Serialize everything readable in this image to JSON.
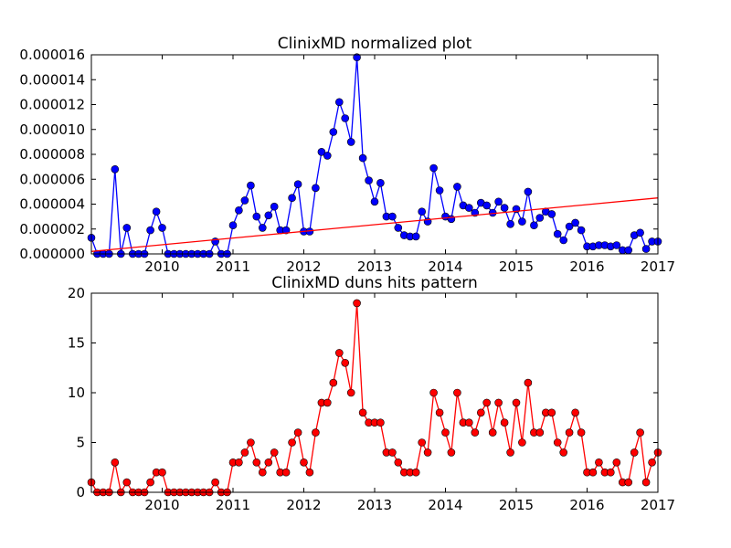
{
  "chart_data": [
    {
      "type": "line",
      "title": "ClinixMD normalized plot",
      "xlabel": "",
      "ylabel": "",
      "xlim": [
        2009.0,
        2017.0
      ],
      "ylim": [
        0.0,
        1.6e-05
      ],
      "x_ticks": [
        "2010",
        "2011",
        "2012",
        "2013",
        "2014",
        "2015",
        "2016",
        "2017"
      ],
      "y_ticks": [
        "0.000000",
        "0.000002",
        "0.000004",
        "0.000006",
        "0.000008",
        "0.000010",
        "0.000012",
        "0.000014",
        "0.000016"
      ],
      "grid": false,
      "series": [
        {
          "style": "line-with-circle-markers",
          "color": "#0000ff",
          "x": [
            2009.0,
            2009.083,
            2009.167,
            2009.25,
            2009.333,
            2009.417,
            2009.5,
            2009.583,
            2009.667,
            2009.75,
            2009.833,
            2009.917,
            2010.0,
            2010.083,
            2010.167,
            2010.25,
            2010.333,
            2010.417,
            2010.5,
            2010.583,
            2010.667,
            2010.75,
            2010.833,
            2010.917,
            2011.0,
            2011.083,
            2011.167,
            2011.25,
            2011.333,
            2011.417,
            2011.5,
            2011.583,
            2011.667,
            2011.75,
            2011.833,
            2011.917,
            2012.0,
            2012.083,
            2012.167,
            2012.25,
            2012.333,
            2012.417,
            2012.5,
            2012.583,
            2012.667,
            2012.75,
            2012.833,
            2012.917,
            2013.0,
            2013.083,
            2013.167,
            2013.25,
            2013.333,
            2013.417,
            2013.5,
            2013.583,
            2013.667,
            2013.75,
            2013.833,
            2013.917,
            2014.0,
            2014.083,
            2014.167,
            2014.25,
            2014.333,
            2014.417,
            2014.5,
            2014.583,
            2014.667,
            2014.75,
            2014.833,
            2014.917,
            2015.0,
            2015.083,
            2015.167,
            2015.25,
            2015.333,
            2015.417,
            2015.5,
            2015.583,
            2015.667,
            2015.75,
            2015.833,
            2015.917,
            2016.0,
            2016.083,
            2016.167,
            2016.25,
            2016.333,
            2016.417,
            2016.5,
            2016.583,
            2016.667,
            2016.75,
            2016.833,
            2016.917,
            2017.0
          ],
          "y": [
            1.3e-06,
            0.0,
            0.0,
            0.0,
            6.8e-06,
            0.0,
            2.1e-06,
            0.0,
            0.0,
            0.0,
            1.9e-06,
            3.4e-06,
            2.1e-06,
            0.0,
            0.0,
            0.0,
            0.0,
            0.0,
            0.0,
            0.0,
            0.0,
            1e-06,
            0.0,
            0.0,
            2.3e-06,
            3.5e-06,
            4.3e-06,
            5.5e-06,
            3e-06,
            2.1e-06,
            3.1e-06,
            3.8e-06,
            1.9e-06,
            1.9e-06,
            4.5e-06,
            5.6e-06,
            1.8e-06,
            1.8e-06,
            5.3e-06,
            8.2e-06,
            7.9e-06,
            9.8e-06,
            1.22e-05,
            1.09e-05,
            9e-06,
            1.58e-05,
            7.7e-06,
            5.9e-06,
            4.2e-06,
            5.7e-06,
            3e-06,
            3e-06,
            2.1e-06,
            1.5e-06,
            1.4e-06,
            1.4e-06,
            3.4e-06,
            2.6e-06,
            6.9e-06,
            5.1e-06,
            3e-06,
            2.8e-06,
            5.4e-06,
            3.9e-06,
            3.7e-06,
            3.3e-06,
            4.1e-06,
            3.9e-06,
            3.3e-06,
            4.2e-06,
            3.7e-06,
            2.4e-06,
            3.6e-06,
            2.6e-06,
            5e-06,
            2.3e-06,
            2.9e-06,
            3.4e-06,
            3.2e-06,
            1.6e-06,
            1.1e-06,
            2.2e-06,
            2.5e-06,
            1.9e-06,
            6e-07,
            6e-07,
            7e-07,
            7e-07,
            6e-07,
            7e-07,
            3e-07,
            3e-07,
            1.5e-06,
            1.7e-06,
            4e-07,
            1e-06,
            1e-06
          ]
        },
        {
          "style": "line",
          "color": "#ff0000",
          "x": [
            2009.0,
            2017.0
          ],
          "y": [
            2e-07,
            4.5e-06
          ]
        }
      ]
    },
    {
      "type": "line",
      "title": "ClinixMD duns hits pattern",
      "xlabel": "",
      "ylabel": "",
      "xlim": [
        2009.0,
        2017.0
      ],
      "ylim": [
        0,
        20
      ],
      "x_ticks": [
        "2010",
        "2011",
        "2012",
        "2013",
        "2014",
        "2015",
        "2016",
        "2017"
      ],
      "y_ticks": [
        "0",
        "5",
        "10",
        "15",
        "20"
      ],
      "grid": false,
      "series": [
        {
          "style": "line-with-circle-markers",
          "color": "#ff0000",
          "x": [
            2009.0,
            2009.083,
            2009.167,
            2009.25,
            2009.333,
            2009.417,
            2009.5,
            2009.583,
            2009.667,
            2009.75,
            2009.833,
            2009.917,
            2010.0,
            2010.083,
            2010.167,
            2010.25,
            2010.333,
            2010.417,
            2010.5,
            2010.583,
            2010.667,
            2010.75,
            2010.833,
            2010.917,
            2011.0,
            2011.083,
            2011.167,
            2011.25,
            2011.333,
            2011.417,
            2011.5,
            2011.583,
            2011.667,
            2011.75,
            2011.833,
            2011.917,
            2012.0,
            2012.083,
            2012.167,
            2012.25,
            2012.333,
            2012.417,
            2012.5,
            2012.583,
            2012.667,
            2012.75,
            2012.833,
            2012.917,
            2013.0,
            2013.083,
            2013.167,
            2013.25,
            2013.333,
            2013.417,
            2013.5,
            2013.583,
            2013.667,
            2013.75,
            2013.833,
            2013.917,
            2014.0,
            2014.083,
            2014.167,
            2014.25,
            2014.333,
            2014.417,
            2014.5,
            2014.583,
            2014.667,
            2014.75,
            2014.833,
            2014.917,
            2015.0,
            2015.083,
            2015.167,
            2015.25,
            2015.333,
            2015.417,
            2015.5,
            2015.583,
            2015.667,
            2015.75,
            2015.833,
            2015.917,
            2016.0,
            2016.083,
            2016.167,
            2016.25,
            2016.333,
            2016.417,
            2016.5,
            2016.583,
            2016.667,
            2016.75,
            2016.833,
            2016.917,
            2017.0
          ],
          "y": [
            1,
            0,
            0,
            0,
            3,
            0,
            1,
            0,
            0,
            0,
            1,
            2,
            2,
            0,
            0,
            0,
            0,
            0,
            0,
            0,
            0,
            1,
            0,
            0,
            3,
            3,
            4,
            5,
            3,
            2,
            3,
            4,
            2,
            2,
            5,
            6,
            3,
            2,
            6,
            9,
            9,
            11,
            14,
            13,
            10,
            19,
            8,
            7,
            7,
            7,
            4,
            4,
            3,
            2,
            2,
            2,
            5,
            4,
            10,
            8,
            6,
            4,
            10,
            7,
            7,
            6,
            8,
            9,
            6,
            9,
            7,
            4,
            9,
            5,
            11,
            6,
            6,
            8,
            8,
            5,
            4,
            6,
            8,
            6,
            2,
            2,
            3,
            2,
            2,
            3,
            1,
            1,
            4,
            6,
            1,
            3,
            4
          ]
        }
      ]
    }
  ]
}
